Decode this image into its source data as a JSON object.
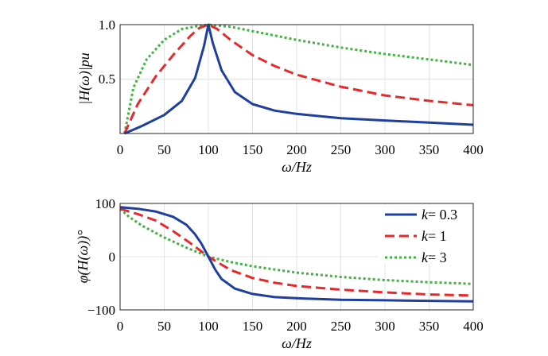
{
  "chart_data": [
    {
      "type": "line",
      "panel": "magnitude",
      "xlabel": "ω/Hz",
      "ylabel": "|H(ω)|pu",
      "xlim": [
        0,
        400
      ],
      "ylim": [
        0,
        1.0
      ],
      "xticks": [
        "0",
        "50",
        "100",
        "150",
        "200",
        "250",
        "300",
        "350",
        "400"
      ],
      "yticks": [
        "0.5",
        "1.0"
      ],
      "grid": true,
      "series": [
        {
          "name": "k = 0.3",
          "color": "#1f3fa0",
          "style": "solid",
          "x": [
            5,
            25,
            50,
            70,
            85,
            95,
            100,
            105,
            115,
            130,
            150,
            175,
            200,
            250,
            300,
            350,
            400
          ],
          "y": [
            0.0,
            0.07,
            0.17,
            0.3,
            0.51,
            0.8,
            1.0,
            0.83,
            0.58,
            0.38,
            0.27,
            0.21,
            0.18,
            0.14,
            0.12,
            0.1,
            0.08
          ]
        },
        {
          "name": "k = 1",
          "color": "#e8282b",
          "style": "dashed",
          "x": [
            5,
            20,
            40,
            60,
            80,
            90,
            100,
            110,
            125,
            150,
            175,
            200,
            250,
            300,
            350,
            400
          ],
          "y": [
            0.0,
            0.27,
            0.52,
            0.72,
            0.9,
            0.97,
            1.0,
            0.96,
            0.86,
            0.72,
            0.62,
            0.54,
            0.43,
            0.35,
            0.3,
            0.26
          ]
        },
        {
          "name": "k = 3",
          "color": "#3fb33f",
          "style": "dotted",
          "x": [
            5,
            15,
            30,
            50,
            70,
            90,
            100,
            125,
            150,
            200,
            250,
            300,
            350,
            400
          ],
          "y": [
            0.0,
            0.42,
            0.68,
            0.86,
            0.96,
            0.99,
            1.0,
            0.98,
            0.94,
            0.86,
            0.79,
            0.73,
            0.68,
            0.63
          ]
        }
      ]
    },
    {
      "type": "line",
      "panel": "phase",
      "xlabel": "ω/Hz",
      "ylabel": "φ(H(ω))°",
      "xlim": [
        0,
        400
      ],
      "ylim": [
        -100,
        100
      ],
      "xticks": [
        "0",
        "50",
        "100",
        "150",
        "200",
        "250",
        "300",
        "350",
        "400"
      ],
      "yticks": [
        "−100",
        "0",
        "100"
      ],
      "grid": true,
      "legend": "top-right",
      "series": [
        {
          "name": "k = 0.3",
          "label_k": "k",
          "label_val": "= 0.3",
          "color": "#1f3fa0",
          "style": "solid",
          "x": [
            0,
            20,
            40,
            60,
            75,
            85,
            92,
            100,
            108,
            115,
            130,
            150,
            175,
            200,
            250,
            300,
            350,
            400
          ],
          "y": [
            93,
            90,
            85,
            75,
            60,
            42,
            25,
            0,
            -25,
            -42,
            -60,
            -70,
            -76,
            -78,
            -81,
            -82,
            -83,
            -84
          ]
        },
        {
          "name": "k = 1",
          "label_k": "k",
          "label_val": "= 1",
          "color": "#e8282b",
          "style": "dashed",
          "x": [
            0,
            20,
            40,
            60,
            80,
            100,
            125,
            150,
            175,
            200,
            250,
            300,
            350,
            400
          ],
          "y": [
            90,
            80,
            68,
            48,
            25,
            0,
            -25,
            -40,
            -49,
            -55,
            -62,
            -67,
            -71,
            -73
          ]
        },
        {
          "name": "k = 3",
          "label_k": "k",
          "label_val": "= 3",
          "color": "#3fb33f",
          "style": "dotted",
          "x": [
            0,
            10,
            25,
            50,
            75,
            100,
            125,
            150,
            200,
            250,
            300,
            350,
            400
          ],
          "y": [
            90,
            75,
            58,
            36,
            17,
            0,
            -10,
            -18,
            -30,
            -38,
            -44,
            -48,
            -51
          ]
        }
      ]
    }
  ]
}
